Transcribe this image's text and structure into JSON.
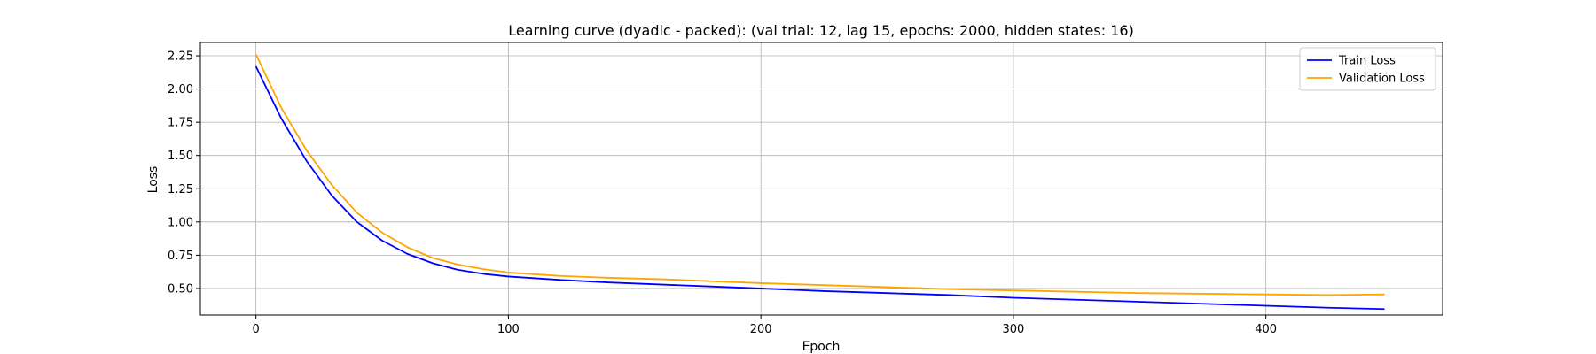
{
  "chart_data": {
    "type": "line",
    "title": "Learning curve (dyadic - packed): (val trial: 12, lag 15, epochs: 2000, hidden states: 16)",
    "xlabel": "Epoch",
    "ylabel": "Loss",
    "xlim": [
      -22,
      470
    ],
    "ylim": [
      0.3,
      2.35
    ],
    "xticks": [
      0,
      100,
      200,
      300,
      400
    ],
    "yticks": [
      0.5,
      0.75,
      1.0,
      1.25,
      1.5,
      1.75,
      2.0,
      2.25
    ],
    "grid": true,
    "legend_position": "top-right",
    "series": [
      {
        "name": "Train Loss",
        "color": "#0000ff",
        "x": [
          0,
          10,
          20,
          30,
          40,
          50,
          60,
          70,
          80,
          90,
          100,
          120,
          140,
          160,
          180,
          200,
          225,
          250,
          275,
          300,
          325,
          350,
          375,
          400,
          425,
          447
        ],
        "y": [
          2.17,
          1.78,
          1.46,
          1.2,
          1.0,
          0.86,
          0.76,
          0.69,
          0.64,
          0.61,
          0.59,
          0.565,
          0.545,
          0.53,
          0.515,
          0.5,
          0.48,
          0.465,
          0.45,
          0.43,
          0.415,
          0.4,
          0.385,
          0.37,
          0.355,
          0.345
        ]
      },
      {
        "name": "Validation Loss",
        "color": "#ffa500",
        "x": [
          0,
          10,
          20,
          30,
          40,
          50,
          60,
          70,
          80,
          90,
          100,
          120,
          140,
          160,
          180,
          200,
          225,
          250,
          275,
          300,
          325,
          350,
          375,
          400,
          425,
          447
        ],
        "y": [
          2.26,
          1.86,
          1.54,
          1.28,
          1.07,
          0.92,
          0.81,
          0.73,
          0.68,
          0.645,
          0.62,
          0.595,
          0.58,
          0.57,
          0.555,
          0.54,
          0.525,
          0.51,
          0.495,
          0.485,
          0.475,
          0.465,
          0.46,
          0.455,
          0.45,
          0.455
        ]
      }
    ]
  }
}
